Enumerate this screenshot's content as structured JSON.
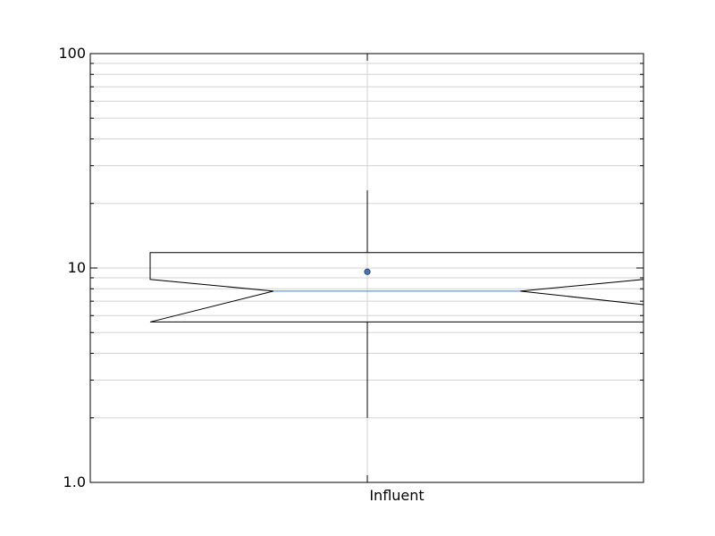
{
  "chart_data": {
    "type": "boxplot",
    "title": "",
    "xlabel": "",
    "ylabel": "",
    "yscale": "log",
    "ylim": [
      1,
      100
    ],
    "grid": true,
    "categories": [
      "Influent"
    ],
    "y_tick_labels": [
      "1.0",
      "10",
      "100"
    ],
    "boxes": [
      {
        "category": "Influent",
        "whisker_low": 2.0,
        "q1": 5.6,
        "notch_low": 6.75,
        "median": 7.8,
        "notch_high": 8.85,
        "q3": 11.8,
        "whisker_high": 23.0,
        "mean": 9.6,
        "notched": true
      }
    ],
    "colors": {
      "median_line": "#6495ed",
      "mean_marker": "#4a72b0",
      "box_edge": "#000000",
      "grid": "#d3d3d3"
    }
  }
}
